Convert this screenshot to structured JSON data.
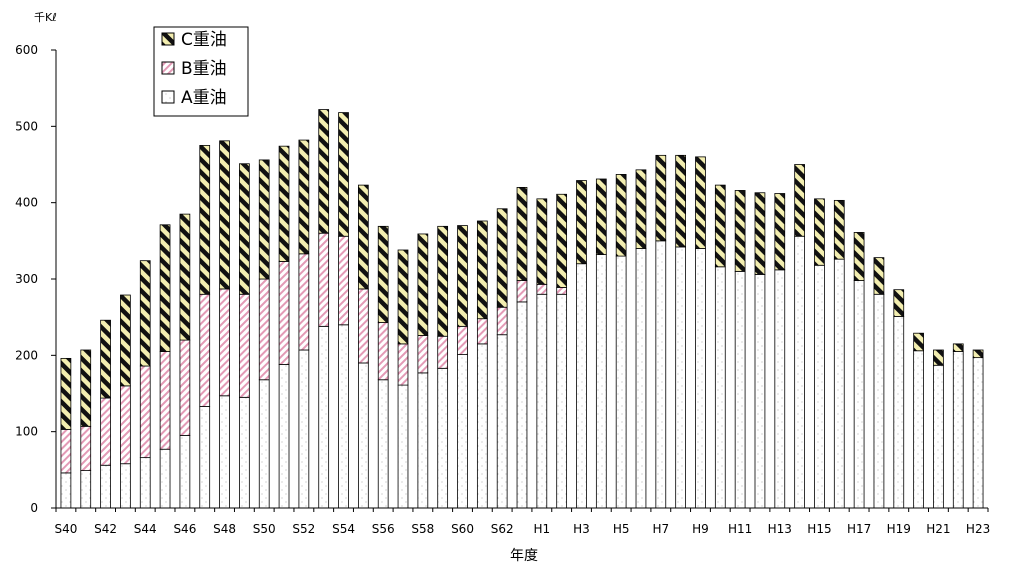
{
  "chart_data": {
    "type": "bar",
    "stacked": true,
    "title": "",
    "xlabel": "年度",
    "ylabel": "千Kℓ",
    "ylim": [
      0,
      600
    ],
    "yticks": [
      0,
      100,
      200,
      300,
      400,
      500,
      600
    ],
    "grid": false,
    "legend_position": "top-left",
    "categories": [
      "S40",
      "S41",
      "S42",
      "S43",
      "S44",
      "S45",
      "S46",
      "S47",
      "S48",
      "S49",
      "S50",
      "S51",
      "S52",
      "S53",
      "S54",
      "S55",
      "S56",
      "S57",
      "S58",
      "S59",
      "S60",
      "S61",
      "S62",
      "S63",
      "H1",
      "H2",
      "H3",
      "H4",
      "H5",
      "H6",
      "H7",
      "H8",
      "H9",
      "H10",
      "H11",
      "H12",
      "H13",
      "H14",
      "H15",
      "H16",
      "H17",
      "H18",
      "H19",
      "H20",
      "H21",
      "H22",
      "H23"
    ],
    "tick_labels": [
      "S40",
      "S42",
      "S44",
      "S46",
      "S48",
      "S50",
      "S52",
      "S54",
      "S56",
      "S58",
      "S60",
      "S62",
      "H1",
      "H3",
      "H5",
      "H7",
      "H9",
      "H11",
      "H13",
      "H15",
      "H17",
      "H19",
      "H21",
      "H23"
    ],
    "series": [
      {
        "name": "A重油",
        "pattern": "dots",
        "values": [
          46,
          49,
          56,
          58,
          66,
          77,
          95,
          133,
          147,
          145,
          168,
          188,
          207,
          238,
          240,
          190,
          168,
          161,
          177,
          183,
          201,
          215,
          227,
          270,
          280,
          280,
          320,
          332,
          330,
          340,
          350,
          342,
          340,
          316,
          310,
          306,
          312,
          356,
          318,
          326,
          298,
          280,
          251,
          206,
          187,
          205,
          197
        ]
      },
      {
        "name": "B重油",
        "pattern": "pink-hatch",
        "values": [
          57,
          58,
          88,
          102,
          120,
          128,
          125,
          147,
          140,
          135,
          132,
          135,
          126,
          122,
          116,
          97,
          75,
          54,
          49,
          42,
          37,
          33,
          36,
          28,
          13,
          9,
          0,
          0,
          0,
          0,
          0,
          0,
          0,
          0,
          0,
          0,
          0,
          0,
          0,
          0,
          0,
          0,
          0,
          0,
          0,
          0,
          0
        ]
      },
      {
        "name": "C重油",
        "pattern": "black-yellow-stripes",
        "values": [
          93,
          100,
          102,
          119,
          138,
          166,
          165,
          195,
          194,
          171,
          156,
          151,
          149,
          162,
          162,
          136,
          126,
          123,
          133,
          144,
          132,
          128,
          129,
          122,
          112,
          122,
          109,
          99,
          107,
          103,
          112,
          120,
          120,
          107,
          106,
          107,
          100,
          94,
          87,
          77,
          63,
          48,
          35,
          23,
          20,
          10,
          10
        ]
      }
    ],
    "legend": [
      {
        "name": "C重油",
        "pattern": "black-yellow-stripes"
      },
      {
        "name": "B重油",
        "pattern": "pink-hatch"
      },
      {
        "name": "A重油",
        "pattern": "dots"
      }
    ]
  }
}
